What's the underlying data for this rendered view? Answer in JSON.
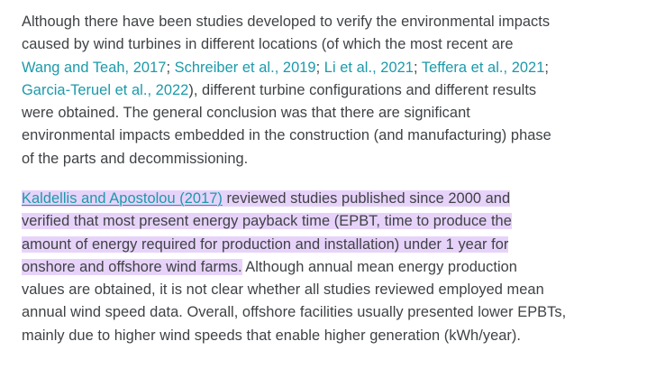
{
  "paragraph1": {
    "line1": "Although there have been studies developed to verify the environmental impacts",
    "line2_pre": "caused by wind turbines in different locations (of which the most recent are",
    "citations": [
      "Wang and Teah, 2017",
      "Schreiber et al., 2019",
      "Li et al., 2021",
      "Teffera et al., 2021",
      "Garcia-Teruel et al., 2022"
    ],
    "separator": "; ",
    "line4_post": "), different turbine configurations and different results",
    "line5": "were obtained. The general conclusion was that there are significant",
    "line6": "environmental impacts embedded in the construction (and manufacturing) phase",
    "line7": "of the parts and decommissioning."
  },
  "paragraph2": {
    "link_text": "Kaldellis and Apostolou (2017)",
    "hl_line1": " reviewed studies published since 2000 and",
    "hl_line2": "verified that most present energy payback time (EPBT, time to produce the",
    "hl_line3": "amount of energy required for production and installation) under 1 year for",
    "hl_line4": "onshore and offshore wind farms.",
    "line4_post": " Although annual mean energy production",
    "line5": "values are obtained, it is not clear whether all studies reviewed employed mean",
    "line6": "annual wind speed data. Overall, offshore facilities usually presented lower EPBTs,",
    "line7": "mainly due to higher wind speeds that enable higher generation (kWh/year)."
  },
  "colors": {
    "text": "#3f4245",
    "link": "#1b9aaa",
    "highlight": "#e7d3fa"
  }
}
